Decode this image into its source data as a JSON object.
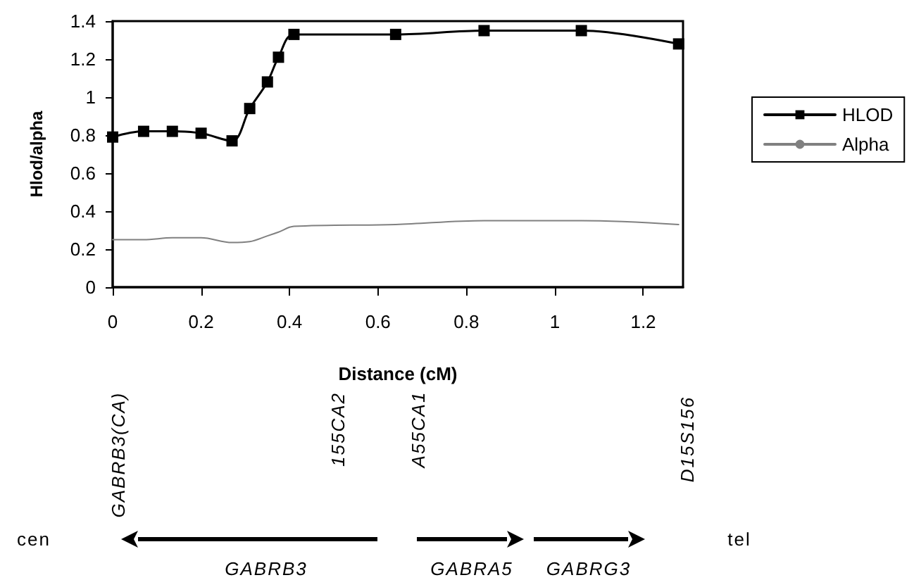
{
  "chart_data": {
    "type": "line",
    "xlabel": "Distance (cM)",
    "ylabel": "Hlod/alpha",
    "x": [
      0,
      0.07,
      0.135,
      0.2,
      0.27,
      0.31,
      0.35,
      0.375,
      0.41,
      0.64,
      0.84,
      1.06,
      1.28
    ],
    "series": [
      {
        "name": "HLOD",
        "color": "#000000",
        "marker": "square",
        "values": [
          0.79,
          0.82,
          0.82,
          0.81,
          0.77,
          0.94,
          1.08,
          1.21,
          1.33,
          1.33,
          1.35,
          1.35,
          1.28
        ]
      },
      {
        "name": "Alpha",
        "color": "#808080",
        "marker": "none",
        "values": [
          0.25,
          0.25,
          0.26,
          0.26,
          0.235,
          0.24,
          0.27,
          0.29,
          0.32,
          0.33,
          0.35,
          0.35,
          0.33
        ]
      }
    ],
    "xlim": [
      0,
      1.29
    ],
    "xticks": [
      0,
      0.2,
      0.4,
      0.6,
      0.8,
      1,
      1.2
    ],
    "ylim": [
      0,
      1.4
    ],
    "yticks": [
      0,
      0.2,
      0.4,
      0.6,
      0.8,
      1,
      1.2,
      1.4
    ],
    "grid": false,
    "legend": "right",
    "line_style": "solid",
    "annotations": [
      "GABRB3(CA)",
      "155CA2",
      "A55CA1",
      "D15S156",
      "cen",
      "tel",
      "GABRB3",
      "GABRA5",
      "GABRG3"
    ]
  }
}
